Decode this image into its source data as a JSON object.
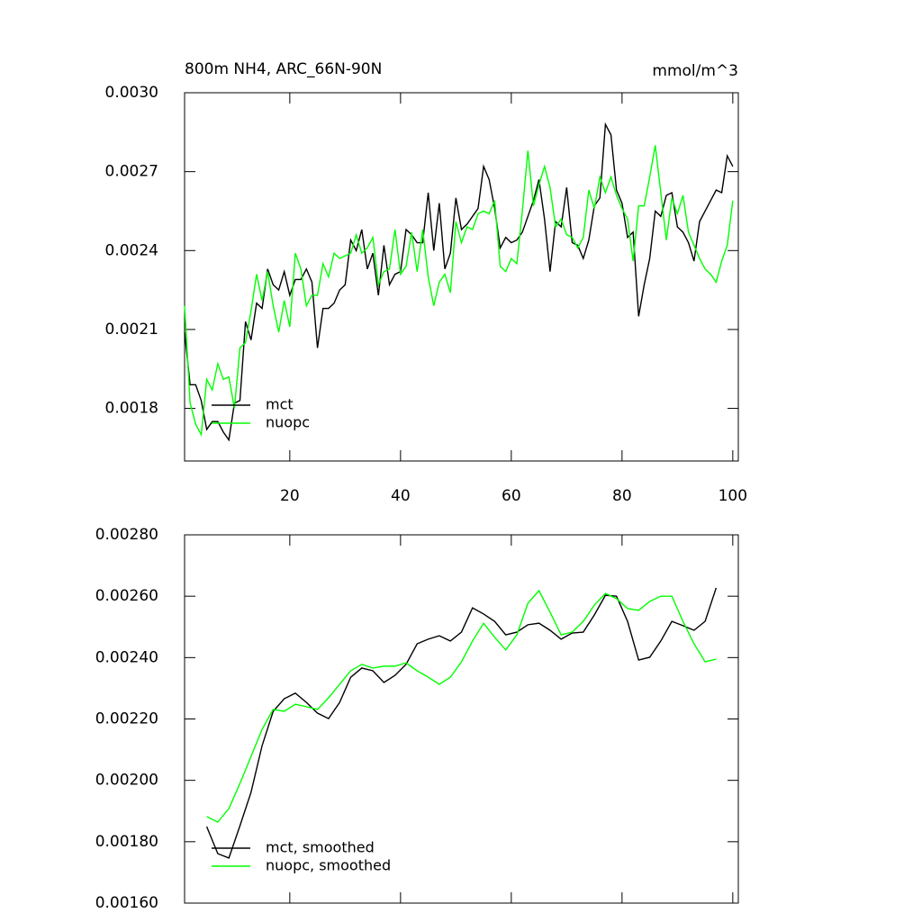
{
  "chart_data": [
    {
      "type": "line",
      "title": "800m NH4, ARC_66N-90N",
      "subtitle": "mmol/m^3",
      "x": [
        1,
        2,
        3,
        4,
        5,
        6,
        7,
        8,
        9,
        10,
        11,
        12,
        13,
        14,
        15,
        16,
        17,
        18,
        19,
        20,
        21,
        22,
        23,
        24,
        25,
        26,
        27,
        28,
        29,
        30,
        31,
        32,
        33,
        34,
        35,
        36,
        37,
        38,
        39,
        40,
        41,
        42,
        43,
        44,
        45,
        46,
        47,
        48,
        49,
        50,
        51,
        52,
        53,
        54,
        55,
        56,
        57,
        58,
        59,
        60,
        61,
        62,
        63,
        64,
        65,
        66,
        67,
        68,
        69,
        70,
        71,
        72,
        73,
        74,
        75,
        76,
        77,
        78,
        79,
        80,
        81,
        82,
        83,
        84,
        85,
        86,
        87,
        88,
        89,
        90,
        91,
        92,
        93,
        94,
        95,
        96,
        97,
        98,
        99,
        100
      ],
      "series": [
        {
          "name": "mct",
          "color": "#000000",
          "values": [
            0.00209,
            0.00189,
            0.00189,
            0.00183,
            0.00172,
            0.00175,
            0.00175,
            0.00171,
            0.00168,
            0.00182,
            0.00183,
            0.00213,
            0.00206,
            0.0022,
            0.00218,
            0.00233,
            0.00227,
            0.00225,
            0.00232,
            0.00223,
            0.00229,
            0.00229,
            0.00233,
            0.00228,
            0.00203,
            0.00218,
            0.00218,
            0.0022,
            0.00225,
            0.00227,
            0.00244,
            0.0024,
            0.00248,
            0.00233,
            0.00239,
            0.00223,
            0.00242,
            0.00227,
            0.00231,
            0.00232,
            0.00248,
            0.00246,
            0.00243,
            0.00243,
            0.00262,
            0.0024,
            0.00258,
            0.00233,
            0.00239,
            0.0026,
            0.00248,
            0.0025,
            0.00253,
            0.00256,
            0.00272,
            0.00267,
            0.00256,
            0.00241,
            0.00245,
            0.00243,
            0.00244,
            0.00247,
            0.00253,
            0.00259,
            0.00267,
            0.00252,
            0.00232,
            0.00251,
            0.00249,
            0.00264,
            0.00243,
            0.00242,
            0.00237,
            0.00244,
            0.00257,
            0.0026,
            0.00288,
            0.00284,
            0.00263,
            0.00258,
            0.00245,
            0.00247,
            0.00215,
            0.00227,
            0.00237,
            0.00255,
            0.00253,
            0.00261,
            0.00262,
            0.00249,
            0.00247,
            0.00243,
            0.00236,
            0.00251,
            0.00255,
            0.00259,
            0.00263,
            0.00262,
            0.00276,
            0.00272
          ]
        },
        {
          "name": "nuopc",
          "color": "#00ff00",
          "values": [
            0.00219,
            0.00182,
            0.00174,
            0.0017,
            0.00191,
            0.00187,
            0.00197,
            0.00191,
            0.00192,
            0.0018,
            0.00203,
            0.00205,
            0.00217,
            0.00231,
            0.00221,
            0.00232,
            0.00219,
            0.00209,
            0.00221,
            0.00211,
            0.00239,
            0.00233,
            0.00219,
            0.00223,
            0.00223,
            0.00235,
            0.0023,
            0.00239,
            0.00237,
            0.00238,
            0.00239,
            0.00246,
            0.00239,
            0.00241,
            0.00245,
            0.00227,
            0.00232,
            0.00233,
            0.00248,
            0.00231,
            0.00234,
            0.00247,
            0.00232,
            0.00248,
            0.0023,
            0.00219,
            0.00228,
            0.00231,
            0.00224,
            0.00251,
            0.00243,
            0.00249,
            0.00248,
            0.00254,
            0.00255,
            0.00254,
            0.00259,
            0.00234,
            0.00232,
            0.00237,
            0.00235,
            0.00255,
            0.00278,
            0.00257,
            0.00265,
            0.00272,
            0.00264,
            0.00249,
            0.00252,
            0.00246,
            0.00245,
            0.00241,
            0.00245,
            0.00263,
            0.00256,
            0.00268,
            0.00262,
            0.00268,
            0.00261,
            0.00256,
            0.00252,
            0.00236,
            0.00257,
            0.00257,
            0.00268,
            0.0028,
            0.00262,
            0.00244,
            0.0026,
            0.00254,
            0.00261,
            0.00247,
            0.00242,
            0.00237,
            0.00233,
            0.00231,
            0.00228,
            0.00236,
            0.00242,
            0.00259
          ]
        }
      ],
      "xlim": [
        1,
        101
      ],
      "xticks": [
        20,
        40,
        60,
        80,
        100
      ],
      "ylim": [
        0.0016,
        0.003
      ],
      "yticks": [
        {
          "value": 0.0018,
          "label": "0.0018"
        },
        {
          "value": 0.0021,
          "label": "0.0021"
        },
        {
          "value": 0.0024,
          "label": "0.0024"
        },
        {
          "value": 0.0027,
          "label": "0.0027"
        },
        {
          "value": 0.003,
          "label": "0.0030"
        }
      ],
      "legend": "lower left"
    },
    {
      "type": "line",
      "x": [
        5,
        7,
        9,
        11,
        13,
        15,
        17,
        19,
        21,
        23,
        25,
        27,
        29,
        31,
        33,
        35,
        37,
        39,
        41,
        43,
        45,
        47,
        49,
        51,
        53,
        55,
        57,
        59,
        61,
        63,
        65,
        67,
        69,
        71,
        73,
        75,
        77,
        79,
        81,
        83,
        85,
        87,
        89,
        91,
        93,
        95,
        97
      ],
      "series": [
        {
          "name": "mct, smoothed",
          "color": "#000000",
          "values": [
            0.001849,
            0.001761,
            0.001747,
            0.001852,
            0.001961,
            0.002113,
            0.002225,
            0.002266,
            0.002284,
            0.002254,
            0.002219,
            0.002201,
            0.002254,
            0.002336,
            0.002366,
            0.002357,
            0.002319,
            0.002342,
            0.002378,
            0.002445,
            0.00246,
            0.002471,
            0.002454,
            0.002483,
            0.002562,
            0.002542,
            0.002518,
            0.002474,
            0.002483,
            0.002507,
            0.002512,
            0.002489,
            0.00246,
            0.00248,
            0.002483,
            0.002539,
            0.002603,
            0.0026,
            0.002518,
            0.002392,
            0.002401,
            0.002454,
            0.002518,
            0.002504,
            0.002489,
            0.002518,
            0.002627
          ]
        },
        {
          "name": "nuopc, smoothed",
          "color": "#00ff00",
          "values": [
            0.001882,
            0.001864,
            0.001908,
            0.00199,
            0.002078,
            0.002166,
            0.002231,
            0.002225,
            0.002248,
            0.00224,
            0.002231,
            0.002269,
            0.002313,
            0.002357,
            0.002378,
            0.002366,
            0.002372,
            0.002372,
            0.002383,
            0.002357,
            0.002336,
            0.002313,
            0.002336,
            0.002386,
            0.002454,
            0.002512,
            0.002466,
            0.002425,
            0.002474,
            0.002577,
            0.002618,
            0.002548,
            0.002474,
            0.002483,
            0.002518,
            0.002571,
            0.002609,
            0.002592,
            0.00256,
            0.002554,
            0.002583,
            0.0026,
            0.0026,
            0.002518,
            0.002445,
            0.002386,
            0.002395
          ]
        }
      ],
      "xlim": [
        1,
        101
      ],
      "xticks": [
        20,
        40,
        60,
        80,
        100
      ],
      "ylim": [
        0.0016,
        0.0028
      ],
      "yticks": [
        {
          "value": 0.0016,
          "label": "0.00160"
        },
        {
          "value": 0.0018,
          "label": "0.00180"
        },
        {
          "value": 0.002,
          "label": "0.00200"
        },
        {
          "value": 0.0022,
          "label": "0.00220"
        },
        {
          "value": 0.0024,
          "label": "0.00240"
        },
        {
          "value": 0.0026,
          "label": "0.00260"
        },
        {
          "value": 0.0028,
          "label": "0.00280"
        }
      ],
      "legend": "lower left"
    }
  ]
}
